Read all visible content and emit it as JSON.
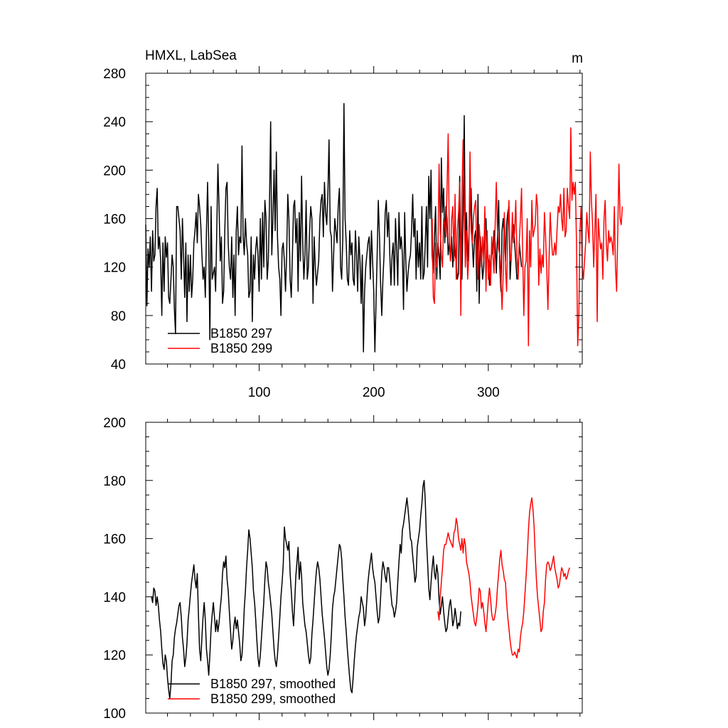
{
  "chart_data": [
    {
      "type": "line",
      "title": "HMXL, LabSea",
      "units": "m",
      "xlim": [
        1,
        382
      ],
      "ylim": [
        40,
        280
      ],
      "x_ticks": [
        100,
        200,
        300
      ],
      "y_ticks": [
        40,
        80,
        120,
        160,
        200,
        240,
        280
      ],
      "grid": false,
      "legend_position": "bottom-left",
      "series": [
        {
          "name": "B1850 297",
          "color": "#000000",
          "x_start": 1,
          "values": [
            155,
            88,
            135,
            120,
            145,
            100,
            150,
            125,
            130,
            170,
            185,
            135,
            145,
            125,
            80,
            140,
            100,
            145,
            128,
            140,
            95,
            90,
            110,
            130,
            120,
            85,
            65,
            170,
            170,
            160,
            150,
            110,
            160,
            130,
            95,
            140,
            75,
            130,
            100,
            130,
            95,
            110,
            140,
            150,
            165,
            140,
            180,
            170,
            155,
            130,
            110,
            120,
            95,
            150,
            190,
            140,
            60,
            170,
            110,
            115,
            120,
            100,
            150,
            205,
            170,
            125,
            145,
            90,
            100,
            150,
            185,
            190,
            140,
            120,
            110,
            145,
            95,
            130,
            80,
            150,
            170,
            130,
            145,
            140,
            220,
            145,
            130,
            160,
            140,
            130,
            95,
            100,
            145,
            75,
            130,
            110,
            135,
            145,
            130,
            100,
            160,
            110,
            165,
            120,
            175,
            160,
            110,
            125,
            170,
            240,
            130,
            160,
            200,
            150,
            215,
            145,
            120,
            110,
            80,
            135,
            140,
            125,
            100,
            130,
            180,
            160,
            110,
            95,
            130,
            170,
            175,
            140,
            160,
            100,
            165,
            125,
            195,
            140,
            110,
            130,
            175,
            110,
            120,
            150,
            170,
            160,
            90,
            145,
            120,
            105,
            115,
            125,
            160,
            175,
            180,
            145,
            190,
            165,
            155,
            180,
            225,
            150,
            145,
            100,
            130,
            160,
            150,
            140,
            170,
            185,
            120,
            110,
            145,
            255,
            160,
            140,
            110,
            105,
            150,
            130,
            140,
            110,
            105,
            150,
            130,
            100,
            145,
            125,
            90,
            130,
            50,
            100,
            120,
            130,
            140,
            145,
            110,
            150,
            125,
            100,
            50,
            90,
            130,
            175,
            145,
            105,
            80,
            110,
            130,
            165,
            175,
            145,
            165,
            130,
            105,
            130,
            140,
            105,
            160,
            135,
            105,
            165,
            135,
            145,
            130,
            85,
            165,
            125,
            100,
            115,
            125,
            130,
            150,
            180,
            145,
            160,
            110,
            150,
            120,
            140,
            110,
            170,
            110,
            115,
            140,
            170,
            120,
            195,
            160,
            200,
            130,
            115,
            145,
            170,
            110,
            140,
            130,
            110,
            210,
            165,
            185,
            140,
            170,
            160,
            130,
            140,
            125,
            145,
            120,
            145,
            130,
            125,
            110,
            115,
            195,
            130,
            110,
            165,
            245,
            130,
            165,
            125,
            145,
            170,
            185,
            140,
            120,
            145,
            150,
            100,
            180,
            90,
            145,
            130,
            110,
            120,
            155,
            160,
            130,
            125,
            105,
            120,
            135,
            130,
            150,
            140,
            115,
            145,
            175,
            120,
            100,
            150,
            160,
            145,
            125,
            155,
            165,
            170,
            110,
            130,
            150,
            155,
            140,
            125,
            110,
            115,
            140,
            130,
            120
          ],
          "note": ""
        },
        {
          "name": "B1850 299",
          "color": "#ff0000",
          "x_start": 251,
          "values": [
            160,
            95,
            90,
            140,
            120,
            130,
            205,
            150,
            130,
            120,
            160,
            155,
            145,
            185,
            230,
            140,
            125,
            160,
            170,
            125,
            180,
            110,
            150,
            165,
            190,
            80,
            180,
            225,
            170,
            120,
            150,
            110,
            130,
            215,
            150,
            140,
            160,
            170,
            175,
            125,
            110,
            155,
            140,
            120,
            145,
            125,
            170,
            100,
            150,
            110,
            130,
            105,
            145,
            130,
            115,
            155,
            190,
            150,
            135,
            130,
            110,
            85,
            115,
            165,
            120,
            100,
            150,
            175,
            125,
            130,
            165,
            140,
            150,
            175,
            130,
            110,
            140,
            160,
            185,
            130,
            80,
            120,
            125,
            160,
            55,
            150,
            120,
            175,
            145,
            150,
            155,
            180,
            170,
            105,
            135,
            115,
            130,
            120,
            165,
            145,
            120,
            85,
            125,
            165,
            145,
            130,
            130,
            140,
            130,
            150,
            170,
            165,
            180,
            160,
            150,
            185,
            145,
            150,
            185,
            170,
            160,
            235,
            175,
            190,
            180,
            190,
            140,
            55,
            80,
            150,
            170,
            120,
            110,
            125,
            140,
            165,
            150,
            140,
            215,
            175,
            155,
            120,
            150,
            180,
            75,
            160,
            145,
            135,
            140,
            110,
            160,
            175,
            140,
            125,
            150,
            140,
            145,
            140,
            130,
            170,
            120,
            100,
            150,
            205,
            160,
            155,
            170
          ],
          "note": ""
        }
      ]
    },
    {
      "type": "line",
      "xlim": [
        1,
        382
      ],
      "ylim": [
        100,
        200
      ],
      "y_ticks": [
        100,
        120,
        140,
        160,
        180,
        200
      ],
      "grid": false,
      "legend_position": "bottom-left",
      "series": [
        {
          "name": "B1850 297, smoothed",
          "color": "#000000",
          "x_start": 6,
          "values": [
            140,
            138,
            143,
            142,
            137,
            140,
            137,
            132,
            128,
            122,
            117,
            115,
            120,
            118,
            112,
            108,
            105,
            110,
            118,
            120,
            126,
            129,
            131,
            134,
            137,
            138,
            133,
            126,
            122,
            116,
            119,
            124,
            132,
            136,
            141,
            145,
            148,
            151,
            146,
            143,
            148,
            134,
            122,
            118,
            126,
            133,
            138,
            132,
            122,
            118,
            113,
            120,
            129,
            134,
            138,
            133,
            128,
            132,
            128,
            131,
            136,
            140,
            148,
            152,
            150,
            154,
            146,
            142,
            135,
            128,
            122,
            125,
            130,
            133,
            129,
            132,
            128,
            124,
            118,
            120,
            127,
            136,
            142,
            150,
            156,
            163,
            160,
            155,
            150,
            142,
            138,
            132,
            125,
            119,
            116,
            120,
            126,
            132,
            138,
            146,
            152,
            150,
            145,
            142,
            138,
            134,
            128,
            122,
            118,
            116,
            120,
            126,
            133,
            140,
            145,
            151,
            164,
            160,
            158,
            156,
            159,
            148,
            142,
            135,
            130,
            138,
            147,
            152,
            157,
            146,
            152,
            147,
            138,
            134,
            130,
            128,
            124,
            120,
            117,
            119,
            127,
            132,
            138,
            144,
            149,
            152,
            150,
            146,
            140,
            134,
            130,
            126,
            121,
            116,
            113,
            115,
            120,
            127,
            136,
            140,
            142,
            146,
            150,
            154,
            158,
            157,
            153,
            146,
            140,
            133,
            128,
            122,
            117,
            112,
            108,
            107,
            112,
            118,
            123,
            127,
            130,
            133,
            135,
            140,
            138,
            136,
            130,
            133,
            139,
            145,
            149,
            152,
            155,
            150,
            147,
            145,
            140,
            135,
            131,
            133,
            140,
            148,
            152,
            150,
            147,
            145,
            150,
            150,
            146,
            141,
            137,
            136,
            133,
            135,
            138,
            145,
            152,
            158,
            155,
            163,
            165,
            168,
            171,
            174,
            170,
            165,
            160,
            159,
            154,
            150,
            145,
            147,
            157,
            160,
            163,
            168,
            172,
            178,
            180,
            173,
            160,
            152,
            143,
            139,
            145,
            150,
            154,
            148,
            146,
            151,
            148,
            139,
            134,
            137,
            140,
            135,
            131,
            128,
            129,
            133,
            137,
            139,
            135,
            130,
            132,
            136,
            133,
            129,
            131,
            130,
            135
          ],
          "note": ""
        },
        {
          "name": "B1850 299, smoothed",
          "color": "#ff0000",
          "x_start": 256,
          "values": [
            135,
            132,
            140,
            145,
            150,
            156,
            158,
            158,
            160,
            162,
            160,
            159,
            158,
            157,
            162,
            163,
            167,
            165,
            160,
            158,
            156,
            160,
            155,
            160,
            158,
            152,
            150,
            148,
            145,
            140,
            137,
            134,
            131,
            130,
            133,
            137,
            143,
            142,
            136,
            138,
            135,
            131,
            128,
            133,
            139,
            143,
            139,
            134,
            132,
            132,
            134,
            137,
            143,
            148,
            153,
            156,
            151,
            149,
            146,
            145,
            138,
            133,
            129,
            125,
            122,
            120,
            120,
            121,
            120,
            119,
            122,
            121,
            126,
            129,
            131,
            135,
            141,
            147,
            154,
            163,
            169,
            172,
            174,
            170,
            164,
            154,
            146,
            140,
            136,
            132,
            128,
            129,
            135,
            138,
            146,
            151,
            152,
            151,
            149,
            150,
            152,
            154,
            150,
            148,
            146,
            143,
            144,
            147,
            150,
            149,
            147,
            148,
            146,
            147,
            149,
            150
          ],
          "note": ""
        }
      ]
    }
  ]
}
